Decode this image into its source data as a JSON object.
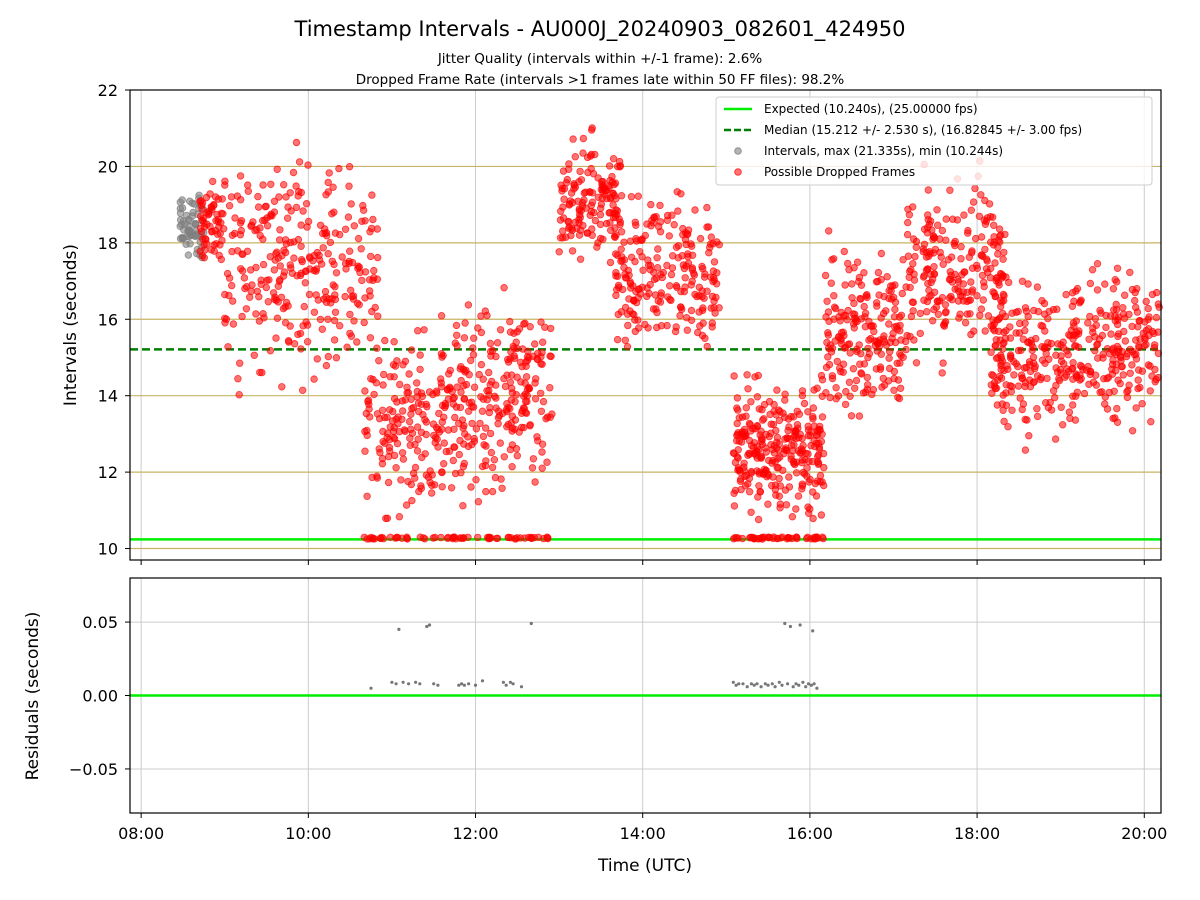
{
  "title": "Timestamp Intervals - AU000J_20240903_082601_424950",
  "subtitle_1": "Jitter Quality (intervals within +/-1 frame): 2.6%",
  "subtitle_2": "Dropped Frame Rate (intervals >1 frames late within 50 FF files): 98.2%",
  "colors": {
    "expected": "#00ee00",
    "median": "#007f00",
    "dropped": "#ff0000",
    "intervals": "#808080",
    "gold_grid": "#c8b464",
    "grid": "#cccccc"
  },
  "chart_data": [
    {
      "type": "scatter",
      "ylabel": "Intervals (seconds)",
      "ylim": [
        9.7,
        22
      ],
      "xlim": [
        "07:52",
        "20:12"
      ],
      "yticks": [
        "10",
        "12",
        "14",
        "16",
        "18",
        "20",
        "22"
      ],
      "grid": "on",
      "legend_position": "top-right",
      "legend": [
        "Expected (10.240s), (25.00000 fps)",
        "Median (15.212 +/- 2.530 s), (16.82845 +/- 3.00 fps)",
        "Intervals, max (21.335s), min (10.244s)",
        "Possible Dropped Frames"
      ],
      "lines": [
        {
          "name": "Expected",
          "y": 10.24,
          "style": "solid"
        },
        {
          "name": "Median",
          "y": 15.212,
          "style": "dashed"
        }
      ],
      "series": [
        {
          "name": "Intervals",
          "description": "grey points, all intervals, concentrated 08:28-08:45 between 17.0 and 19.8 s",
          "clusters": [
            {
              "x_range": [
                "08:28",
                "08:45"
              ],
              "y_range": [
                17.0,
                19.8
              ],
              "count": 60
            }
          ]
        },
        {
          "name": "Possible Dropped Frames",
          "clusters": [
            {
              "x_range": [
                "08:42",
                "09:00"
              ],
              "y_range": [
                17.0,
                20.0
              ],
              "count": 60
            },
            {
              "x_range": [
                "09:00",
                "10:00"
              ],
              "y_range": [
                13.5,
                21.3
              ],
              "count": 170
            },
            {
              "x_range": [
                "10:00",
                "10:50"
              ],
              "y_range": [
                13.8,
                20.8
              ],
              "count": 120
            },
            {
              "x_range": [
                "10:40",
                "11:40"
              ],
              "y_range": [
                10.25,
                16.5
              ],
              "count": 200
            },
            {
              "x_range": [
                "11:40",
                "12:55"
              ],
              "y_range": [
                10.25,
                17.4
              ],
              "count": 280
            },
            {
              "x_range": [
                "13:00",
                "13:45"
              ],
              "y_range": [
                16.8,
                21.3
              ],
              "count": 150
            },
            {
              "x_range": [
                "13:40",
                "14:55"
              ],
              "y_range": [
                14.5,
                20.0
              ],
              "count": 220
            },
            {
              "x_range": [
                "15:05",
                "16:10"
              ],
              "y_range": [
                10.25,
                15.0
              ],
              "count": 330
            },
            {
              "x_range": [
                "16:10",
                "17:10"
              ],
              "y_range": [
                12.9,
                18.6
              ],
              "count": 200
            },
            {
              "x_range": [
                "17:10",
                "18:20"
              ],
              "y_range": [
                14.0,
                20.5
              ],
              "count": 230
            },
            {
              "x_range": [
                "18:10",
                "19:10"
              ],
              "y_range": [
                12.3,
                17.6
              ],
              "count": 190
            },
            {
              "x_range": [
                "19:10",
                "20:12"
              ],
              "y_range": [
                12.5,
                18.0
              ],
              "count": 190
            }
          ]
        }
      ]
    },
    {
      "type": "scatter",
      "xlabel": "Time (UTC)",
      "ylabel": "Residuals (seconds)",
      "ylim": [
        -0.08,
        0.08
      ],
      "xlim": [
        "07:52",
        "20:12"
      ],
      "xticks": [
        "08:00",
        "10:00",
        "12:00",
        "14:00",
        "16:00",
        "18:00",
        "20:00"
      ],
      "yticks": [
        "−0.05",
        "0.00",
        "0.05"
      ],
      "grid": "on",
      "lines": [
        {
          "name": "Zero",
          "y": 0.0,
          "style": "solid"
        }
      ],
      "series": [
        {
          "name": "Residuals",
          "points": [
            [
              "10:45",
              0.005
            ],
            [
              "11:00",
              0.009
            ],
            [
              "11:03",
              0.008
            ],
            [
              "11:05",
              0.045
            ],
            [
              "11:08",
              0.009
            ],
            [
              "11:12",
              0.008
            ],
            [
              "11:17",
              0.009
            ],
            [
              "11:20",
              0.008
            ],
            [
              "11:25",
              0.047
            ],
            [
              "11:27",
              0.048
            ],
            [
              "11:30",
              0.008
            ],
            [
              "11:33",
              0.007
            ],
            [
              "11:48",
              0.007
            ],
            [
              "11:50",
              0.008
            ],
            [
              "11:52",
              0.007
            ],
            [
              "11:55",
              0.008
            ],
            [
              "12:00",
              0.007
            ],
            [
              "12:05",
              0.01
            ],
            [
              "12:20",
              0.009
            ],
            [
              "12:22",
              0.007
            ],
            [
              "12:25",
              0.009
            ],
            [
              "12:27",
              0.008
            ],
            [
              "12:33",
              0.006
            ],
            [
              "12:40",
              0.049
            ],
            [
              "15:05",
              0.009
            ],
            [
              "15:07",
              0.007
            ],
            [
              "15:09",
              0.008
            ],
            [
              "15:12",
              0.008
            ],
            [
              "15:15",
              0.006
            ],
            [
              "15:18",
              0.008
            ],
            [
              "15:20",
              0.007
            ],
            [
              "15:22",
              0.008
            ],
            [
              "15:25",
              0.006
            ],
            [
              "15:28",
              0.008
            ],
            [
              "15:30",
              0.007
            ],
            [
              "15:33",
              0.008
            ],
            [
              "15:35",
              0.006
            ],
            [
              "15:38",
              0.009
            ],
            [
              "15:40",
              0.007
            ],
            [
              "15:42",
              0.049
            ],
            [
              "15:44",
              0.008
            ],
            [
              "15:46",
              0.047
            ],
            [
              "15:48",
              0.006
            ],
            [
              "15:50",
              0.008
            ],
            [
              "15:52",
              0.007
            ],
            [
              "15:53",
              0.048
            ],
            [
              "15:55",
              0.009
            ],
            [
              "15:57",
              0.006
            ],
            [
              "15:59",
              0.008
            ],
            [
              "16:01",
              0.007
            ],
            [
              "16:02",
              0.044
            ],
            [
              "16:03",
              0.008
            ],
            [
              "16:05",
              0.005
            ]
          ]
        }
      ]
    }
  ]
}
